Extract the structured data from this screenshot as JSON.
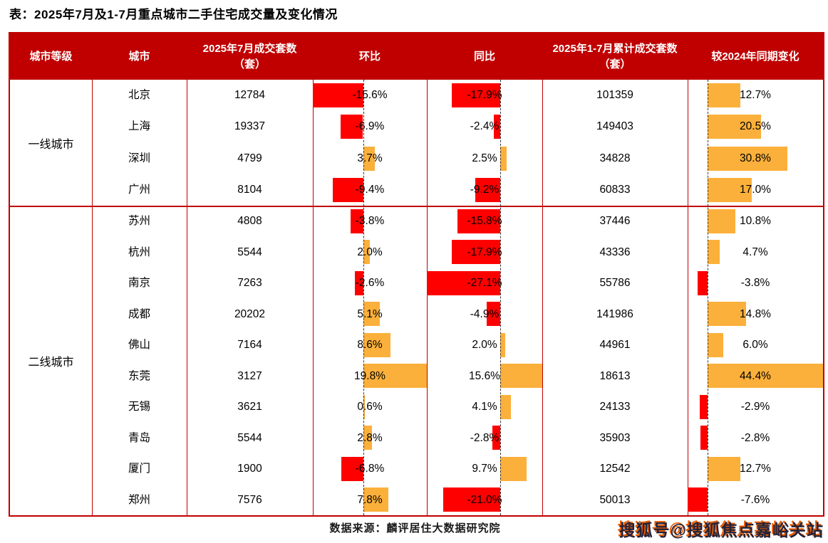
{
  "title": "表：2025年7月及1-7月重点城市二手住宅成交量及变化情况",
  "source_note": "数据来源：麟评居住大数据研究院",
  "watermark": "搜狐号@搜狐焦点嘉峪关站",
  "colors": {
    "header_bg": "#c00000",
    "grid_border": "#c00000",
    "negative_bar": "#ff0000",
    "positive_bar": "#fbb03b",
    "text": "#000000",
    "header_text": "#ffffff"
  },
  "chart_data": {
    "type": "table",
    "title": "2025年7月及1-7月重点城市二手住宅成交量及变化情况",
    "columns": [
      "城市等级",
      "城市",
      "2025年7月成交套数（套）",
      "环比",
      "同比",
      "2025年1-7月累计成交套数（套）",
      "较2024年同期变化"
    ],
    "bar_axes": {
      "mom": {
        "min": -15.6,
        "max": 19.8
      },
      "yoy": {
        "min": -27.1,
        "max": 15.6
      },
      "chg": {
        "min": -7.6,
        "max": 44.4
      }
    },
    "groups": [
      {
        "tier": "一线城市",
        "rows": [
          {
            "city": "北京",
            "jul": 12784,
            "mom": -15.6,
            "yoy": -17.9,
            "cum": 101359,
            "chg": 12.7
          },
          {
            "city": "上海",
            "jul": 19337,
            "mom": -6.9,
            "yoy": -2.4,
            "cum": 149403,
            "chg": 20.5
          },
          {
            "city": "深圳",
            "jul": 4799,
            "mom": 3.7,
            "yoy": 2.5,
            "cum": 34828,
            "chg": 30.8
          },
          {
            "city": "广州",
            "jul": 8104,
            "mom": -9.4,
            "yoy": -9.2,
            "cum": 60833,
            "chg": 17.0
          }
        ]
      },
      {
        "tier": "二线城市",
        "rows": [
          {
            "city": "苏州",
            "jul": 4808,
            "mom": -3.8,
            "yoy": -15.8,
            "cum": 37446,
            "chg": 10.8
          },
          {
            "city": "杭州",
            "jul": 5544,
            "mom": 2.0,
            "yoy": -17.9,
            "cum": 43336,
            "chg": 4.7
          },
          {
            "city": "南京",
            "jul": 7263,
            "mom": -2.6,
            "yoy": -27.1,
            "cum": 55786,
            "chg": -3.8
          },
          {
            "city": "成都",
            "jul": 20202,
            "mom": 5.1,
            "yoy": -4.9,
            "cum": 141986,
            "chg": 14.8
          },
          {
            "city": "佛山",
            "jul": 7164,
            "mom": 8.6,
            "yoy": 2.0,
            "cum": 44961,
            "chg": 6.0
          },
          {
            "city": "东莞",
            "jul": 3127,
            "mom": 19.8,
            "yoy": 15.6,
            "cum": 18613,
            "chg": 44.4
          },
          {
            "city": "无锡",
            "jul": 3621,
            "mom": 0.6,
            "yoy": 4.1,
            "cum": 24133,
            "chg": -2.9
          },
          {
            "city": "青岛",
            "jul": 5544,
            "mom": 2.8,
            "yoy": -2.8,
            "cum": 35903,
            "chg": -2.8
          },
          {
            "city": "厦门",
            "jul": 1900,
            "mom": -6.8,
            "yoy": 9.7,
            "cum": 12542,
            "chg": 12.7
          },
          {
            "city": "郑州",
            "jul": 7576,
            "mom": 7.8,
            "yoy": -21.0,
            "cum": 50013,
            "chg": -7.6
          }
        ]
      }
    ]
  }
}
